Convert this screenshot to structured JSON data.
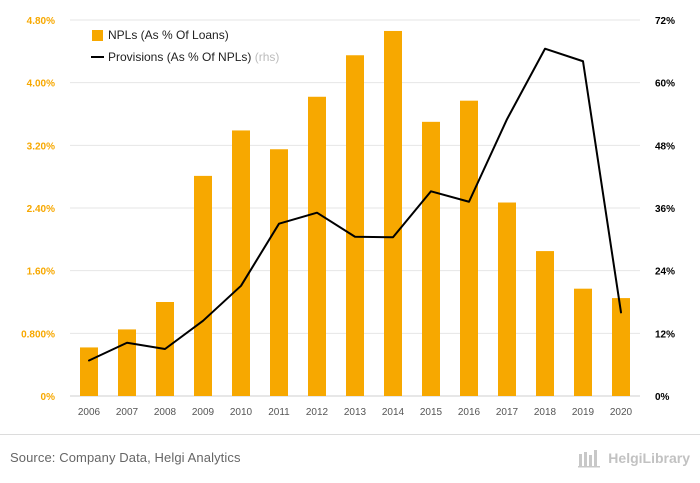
{
  "chart_data": {
    "type": "bar",
    "title": "",
    "xlabel": "",
    "ylabel": "",
    "categories": [
      "2006",
      "2007",
      "2008",
      "2009",
      "2010",
      "2011",
      "2012",
      "2013",
      "2014",
      "2015",
      "2016",
      "2017",
      "2018",
      "2019",
      "2020"
    ],
    "left_axis": {
      "ylim": [
        0,
        4.8
      ],
      "ticks": [
        0,
        0.8,
        1.6,
        2.4,
        3.2,
        4.0,
        4.8
      ],
      "tick_labels": [
        "0%",
        "0.800%",
        "1.60%",
        "2.40%",
        "3.20%",
        "4.00%",
        "4.80%"
      ]
    },
    "right_axis": {
      "ylim": [
        0,
        72
      ],
      "ticks": [
        0,
        12,
        24,
        36,
        48,
        60,
        72
      ],
      "tick_labels": [
        "0%",
        "12%",
        "24%",
        "36%",
        "48%",
        "60%",
        "72%"
      ]
    },
    "series": [
      {
        "name": "NPLs (As % Of Loans)",
        "type": "bar",
        "axis": "left",
        "color": "#f7a800",
        "values": [
          0.62,
          0.85,
          1.2,
          2.81,
          3.39,
          3.15,
          3.82,
          4.35,
          4.66,
          3.5,
          3.77,
          2.47,
          1.85,
          1.37,
          1.25
        ]
      },
      {
        "name": "Provisions (As % Of NPLs)",
        "type": "line",
        "axis": "right",
        "color": "#000000",
        "values": [
          6.8,
          10.2,
          9.0,
          14.4,
          21.1,
          33.0,
          35.1,
          30.5,
          30.4,
          39.2,
          37.2,
          53.0,
          66.5,
          64.1,
          16.0
        ]
      }
    ],
    "legend": {
      "position": "top-left",
      "entries": [
        {
          "label": "NPLs (As % Of Loans)",
          "suffix": ""
        },
        {
          "label": "Provisions (As % Of NPLs)",
          "suffix": "(rhs)"
        }
      ]
    },
    "grid": {
      "horizontal": true,
      "vertical": false
    }
  },
  "footer": {
    "source": "Source: Company Data, Helgi Analytics",
    "brand": "HelgiLibrary"
  },
  "colors": {
    "axis_left": "#f7a800",
    "axis_right": "#000000",
    "grid": "#e6e6e6",
    "footer": "#666666"
  }
}
